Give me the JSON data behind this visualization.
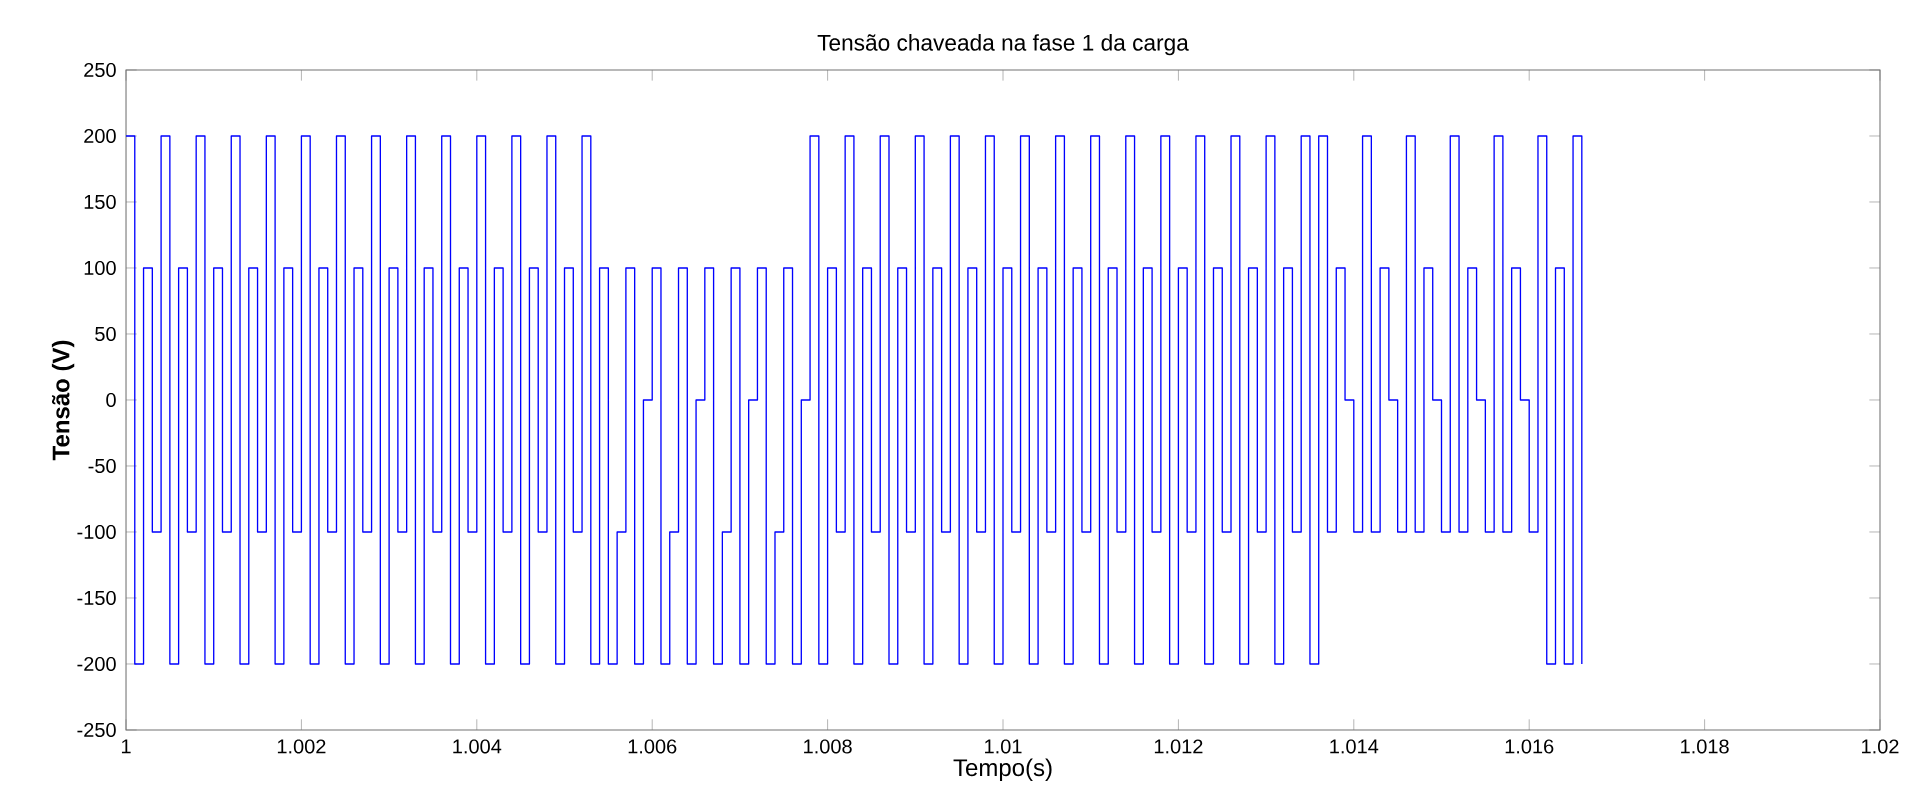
{
  "chart_data": {
    "type": "step",
    "title": "Tensão chaveada na fase 1 da carga",
    "xlabel": "Tempo(s)",
    "ylabel": "Tensão (V)",
    "xlim": [
      1,
      1.02
    ],
    "ylim": [
      -250,
      250
    ],
    "xticks": [
      1,
      1.002,
      1.004,
      1.006,
      1.008,
      1.01,
      1.012,
      1.014,
      1.016,
      1.018,
      1.02
    ],
    "yticks": [
      -250,
      -200,
      -150,
      -100,
      -50,
      0,
      50,
      100,
      150,
      200,
      250
    ],
    "grid": false,
    "series": [
      {
        "color": "#0000ff",
        "x": [
          1.0,
          1.0001,
          1.0002,
          1.0003,
          1.0004,
          1.0005,
          1.0006,
          1.0007,
          1.0008,
          1.0009,
          1.001,
          1.0011,
          1.0012,
          1.0013,
          1.0014,
          1.0015,
          1.0016,
          1.0017,
          1.0018,
          1.0019,
          1.002,
          1.0021,
          1.0022,
          1.0023,
          1.0024,
          1.0025,
          1.0026,
          1.0027,
          1.0028,
          1.0029,
          1.003,
          1.0031,
          1.0032,
          1.0033,
          1.0034,
          1.0035,
          1.0036,
          1.0037,
          1.0038,
          1.0039,
          1.004,
          1.0041,
          1.0042,
          1.0043,
          1.0044,
          1.0045,
          1.0046,
          1.0047,
          1.0048,
          1.0049,
          1.005,
          1.0051,
          1.0052,
          1.0053,
          1.0054,
          1.0055,
          1.0056,
          1.0057,
          1.0058,
          1.0059,
          1.006,
          1.0061,
          1.0062,
          1.0063,
          1.0064,
          1.0065,
          1.0066,
          1.0067,
          1.0068,
          1.0069,
          1.007,
          1.0071,
          1.0072,
          1.0073,
          1.0074,
          1.0075,
          1.0076,
          1.0077,
          1.0078,
          1.0079,
          1.008,
          1.0081,
          1.0082,
          1.0083,
          1.0084,
          1.0085,
          1.0086,
          1.0087,
          1.0088,
          1.0089,
          1.009,
          1.0091,
          1.0092,
          1.0093,
          1.0094,
          1.0095,
          1.0096,
          1.0097,
          1.0098,
          1.0099,
          1.01,
          1.0101,
          1.0102,
          1.0103,
          1.0104,
          1.0105,
          1.0106,
          1.0107,
          1.0108,
          1.0109,
          1.011,
          1.0111,
          1.0112,
          1.0113,
          1.0114,
          1.0115,
          1.0116,
          1.0117,
          1.0118,
          1.0119,
          1.012,
          1.0121,
          1.0122,
          1.0123,
          1.0124,
          1.0125,
          1.0126,
          1.0127,
          1.0128,
          1.0129,
          1.013,
          1.0131,
          1.0132,
          1.0133,
          1.0134,
          1.0135,
          1.0136,
          1.0137,
          1.0138,
          1.0139,
          1.014,
          1.0141,
          1.0142,
          1.0143,
          1.0144,
          1.0145,
          1.0146,
          1.0147,
          1.0148,
          1.0149,
          1.015,
          1.0151,
          1.0152,
          1.0153,
          1.0154,
          1.0155,
          1.0156,
          1.0157,
          1.0158,
          1.0159,
          1.016,
          1.0161,
          1.0162,
          1.0163,
          1.0164,
          1.0165,
          1.0166
        ],
        "values": [
          200,
          -200,
          100,
          -100,
          200,
          -200,
          100,
          -100,
          200,
          -200,
          100,
          -100,
          200,
          -200,
          100,
          -100,
          200,
          -200,
          100,
          -100,
          200,
          -200,
          100,
          -100,
          200,
          -200,
          100,
          -100,
          200,
          -200,
          100,
          -100,
          200,
          -200,
          100,
          -100,
          200,
          -200,
          100,
          -100,
          200,
          -200,
          100,
          -100,
          200,
          -200,
          100,
          -100,
          200,
          -200,
          100,
          -100,
          200,
          -200,
          100,
          -200,
          -100,
          100,
          -200,
          0,
          100,
          -200,
          -100,
          100,
          -200,
          0,
          100,
          -200,
          -100,
          100,
          -200,
          0,
          100,
          -200,
          -100,
          100,
          -200,
          0,
          200,
          -200,
          100,
          -100,
          200,
          -200,
          100,
          -100,
          200,
          -200,
          100,
          -100,
          200,
          -200,
          100,
          -100,
          200,
          -200,
          100,
          -100,
          200,
          -200,
          100,
          -100,
          200,
          -200,
          100,
          -100,
          200,
          -200,
          100,
          -100,
          200,
          -200,
          100,
          -100,
          200,
          -200,
          100,
          -100,
          200,
          -200,
          100,
          -100,
          200,
          -200,
          100,
          -100,
          200,
          -200,
          100,
          -100,
          200,
          -200,
          100,
          -100,
          200,
          -200,
          200,
          -100,
          100,
          0,
          -100,
          200,
          -100,
          100,
          0,
          -100,
          200,
          -100,
          100,
          0,
          -100,
          200,
          -100,
          100,
          0,
          -100,
          200,
          -100,
          100,
          0,
          -100,
          200,
          -200,
          100,
          -200,
          200,
          -200
        ]
      }
    ]
  }
}
